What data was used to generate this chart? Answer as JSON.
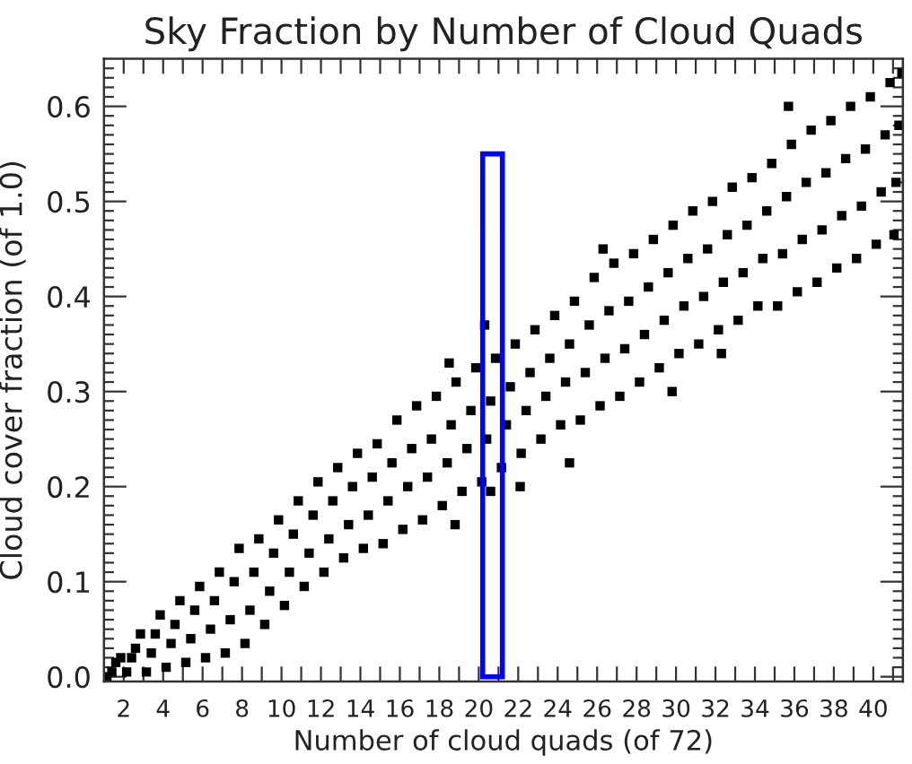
{
  "chart_data": {
    "type": "scatter",
    "title": "Sky Fraction by Number of Cloud Quads",
    "xlabel": "Number of cloud quads (of 72)",
    "ylabel": "Cloud cover fraction (of 1.0)",
    "xlim": [
      1,
      41.5
    ],
    "ylim": [
      -0.005,
      0.65
    ],
    "xticks": [
      2,
      {
        "value": 3,
        "label": null
      },
      4,
      {
        "value": 5,
        "label": null
      },
      6,
      {
        "value": 7,
        "label": null
      },
      8,
      {
        "value": 9,
        "label": null
      },
      10,
      {
        "value": 11,
        "label": null
      },
      12,
      {
        "value": 13,
        "label": null
      },
      14,
      {
        "value": 15,
        "label": null
      },
      16,
      {
        "value": 17,
        "label": null
      },
      18,
      {
        "value": 19,
        "label": null
      },
      20,
      {
        "value": 21,
        "label": null
      },
      22,
      {
        "value": 23,
        "label": null
      },
      24,
      {
        "value": 25,
        "label": null
      },
      26,
      {
        "value": 27,
        "label": null
      },
      28,
      {
        "value": 29,
        "label": null
      },
      30,
      {
        "value": 31,
        "label": null
      },
      32,
      {
        "value": 33,
        "label": null
      },
      34,
      {
        "value": 35,
        "label": null
      },
      36,
      {
        "value": 37,
        "label": null
      },
      38,
      {
        "value": 39,
        "label": null
      },
      40,
      {
        "value": 41,
        "label": null
      }
    ],
    "yticks": [
      {
        "value": 0,
        "label": "0.0"
      },
      {
        "value": 0.01,
        "label": null
      },
      {
        "value": 0.02,
        "label": null
      },
      {
        "value": 0.03,
        "label": null
      },
      {
        "value": 0.04,
        "label": null
      },
      {
        "value": 0.05,
        "label": null
      },
      {
        "value": 0.06,
        "label": null
      },
      {
        "value": 0.07,
        "label": null
      },
      {
        "value": 0.08,
        "label": null
      },
      {
        "value": 0.09,
        "label": null
      },
      0.1,
      {
        "value": 0.11,
        "label": null
      },
      {
        "value": 0.12,
        "label": null
      },
      {
        "value": 0.13,
        "label": null
      },
      {
        "value": 0.14,
        "label": null
      },
      {
        "value": 0.15,
        "label": null
      },
      {
        "value": 0.16,
        "label": null
      },
      {
        "value": 0.17,
        "label": null
      },
      {
        "value": 0.18,
        "label": null
      },
      {
        "value": 0.19,
        "label": null
      },
      0.2,
      {
        "value": 0.21,
        "label": null
      },
      {
        "value": 0.22,
        "label": null
      },
      {
        "value": 0.23,
        "label": null
      },
      {
        "value": 0.24,
        "label": null
      },
      {
        "value": 0.25,
        "label": null
      },
      {
        "value": 0.26,
        "label": null
      },
      {
        "value": 0.27,
        "label": null
      },
      {
        "value": 0.28,
        "label": null
      },
      {
        "value": 0.29,
        "label": null
      },
      0.3,
      {
        "value": 0.31,
        "label": null
      },
      {
        "value": 0.32,
        "label": null
      },
      {
        "value": 0.33,
        "label": null
      },
      {
        "value": 0.34,
        "label": null
      },
      {
        "value": 0.35,
        "label": null
      },
      {
        "value": 0.36,
        "label": null
      },
      {
        "value": 0.37,
        "label": null
      },
      {
        "value": 0.38,
        "label": null
      },
      {
        "value": 0.39,
        "label": null
      },
      0.4,
      {
        "value": 0.41,
        "label": null
      },
      {
        "value": 0.42,
        "label": null
      },
      {
        "value": 0.43,
        "label": null
      },
      {
        "value": 0.44,
        "label": null
      },
      {
        "value": 0.45,
        "label": null
      },
      {
        "value": 0.46,
        "label": null
      },
      {
        "value": 0.47,
        "label": null
      },
      {
        "value": 0.48,
        "label": null
      },
      {
        "value": 0.49,
        "label": null
      },
      0.5,
      {
        "value": 0.51,
        "label": null
      },
      {
        "value": 0.52,
        "label": null
      },
      {
        "value": 0.53,
        "label": null
      },
      {
        "value": 0.54,
        "label": null
      },
      {
        "value": 0.55,
        "label": null
      },
      {
        "value": 0.56,
        "label": null
      },
      {
        "value": 0.57,
        "label": null
      },
      {
        "value": 0.58,
        "label": null
      },
      {
        "value": 0.59,
        "label": null
      },
      0.6,
      {
        "value": 0.61,
        "label": null
      },
      {
        "value": 0.62,
        "label": null
      },
      {
        "value": 0.63,
        "label": null
      },
      {
        "value": 0.64,
        "label": null
      }
    ],
    "marker": "square",
    "grid": false,
    "series": [
      {
        "color": "#000000",
        "x": [
          1.15,
          1.4,
          1.6,
          1.85,
          2.15,
          2.4,
          2.6,
          2.85,
          3.15,
          3.4,
          3.6,
          3.85,
          4.15,
          4.4,
          4.6,
          4.85,
          5.15,
          5.4,
          5.6,
          5.85,
          6.15,
          6.4,
          6.6,
          6.85,
          7.15,
          7.4,
          7.6,
          7.85,
          8.15,
          8.4,
          8.6,
          8.85,
          9.15,
          9.4,
          9.6,
          9.85,
          10.15,
          10.4,
          10.6,
          10.85,
          11.15,
          11.4,
          11.6,
          11.85,
          12.15,
          12.4,
          12.6,
          12.85,
          13.15,
          13.4,
          13.6,
          13.85,
          14.15,
          14.4,
          14.6,
          14.85,
          15.15,
          15.4,
          15.6,
          15.85,
          16.15,
          16.4,
          16.6,
          16.85,
          17.15,
          17.4,
          17.6,
          17.85,
          18.15,
          18.4,
          18.6,
          18.85,
          19.15,
          19.4,
          19.6,
          19.85,
          20.15,
          20.4,
          20.6,
          20.85,
          21.15,
          21.4,
          21.6,
          21.85,
          22.15,
          22.4,
          22.6,
          22.85,
          23.15,
          23.4,
          23.6,
          23.85,
          24.15,
          24.4,
          24.6,
          24.85,
          25.15,
          25.4,
          25.6,
          25.85,
          26.15,
          26.4,
          26.6,
          26.85,
          27.15,
          27.4,
          27.6,
          27.85,
          28.15,
          28.4,
          28.6,
          28.85,
          29.15,
          29.4,
          29.6,
          29.85,
          30.15,
          30.4,
          30.6,
          30.85,
          31.15,
          31.4,
          31.6,
          31.85,
          32.15,
          32.4,
          32.6,
          32.85,
          33.15,
          33.4,
          33.6,
          33.85,
          34.15,
          34.4,
          34.6,
          34.85,
          35.15,
          35.4,
          35.6,
          35.85,
          36.15,
          36.4,
          36.6,
          36.85,
          37.15,
          37.4,
          37.6,
          37.85,
          38.15,
          38.4,
          38.6,
          38.85,
          39.15,
          39.4,
          39.6,
          39.85,
          40.15,
          40.4,
          40.6,
          40.85,
          41.05,
          41.15,
          41.3,
          41.45,
          18.5,
          18.8,
          20.3,
          20.6,
          22.1,
          24.6,
          26.3,
          29.8,
          32.3,
          35.7
        ],
        "values": [
          0.0,
          0.005,
          0.015,
          0.02,
          0.005,
          0.02,
          0.03,
          0.045,
          0.005,
          0.025,
          0.045,
          0.065,
          0.01,
          0.035,
          0.055,
          0.08,
          0.015,
          0.04,
          0.07,
          0.095,
          0.02,
          0.05,
          0.08,
          0.11,
          0.025,
          0.06,
          0.1,
          0.135,
          0.035,
          0.07,
          0.11,
          0.145,
          0.055,
          0.09,
          0.13,
          0.165,
          0.075,
          0.11,
          0.15,
          0.185,
          0.095,
          0.13,
          0.17,
          0.205,
          0.11,
          0.145,
          0.185,
          0.22,
          0.125,
          0.16,
          0.2,
          0.235,
          0.135,
          0.17,
          0.21,
          0.245,
          0.14,
          0.185,
          0.225,
          0.27,
          0.155,
          0.2,
          0.24,
          0.285,
          0.165,
          0.21,
          0.25,
          0.295,
          0.18,
          0.225,
          0.265,
          0.31,
          0.195,
          0.24,
          0.28,
          0.325,
          0.205,
          0.25,
          0.29,
          0.335,
          0.22,
          0.265,
          0.305,
          0.35,
          0.235,
          0.28,
          0.32,
          0.365,
          0.25,
          0.295,
          0.335,
          0.38,
          0.265,
          0.31,
          0.35,
          0.395,
          0.27,
          0.32,
          0.37,
          0.42,
          0.285,
          0.335,
          0.385,
          0.435,
          0.295,
          0.345,
          0.395,
          0.445,
          0.31,
          0.36,
          0.41,
          0.46,
          0.325,
          0.375,
          0.425,
          0.475,
          0.34,
          0.39,
          0.44,
          0.49,
          0.35,
          0.4,
          0.45,
          0.5,
          0.365,
          0.415,
          0.465,
          0.515,
          0.375,
          0.425,
          0.475,
          0.525,
          0.39,
          0.44,
          0.49,
          0.54,
          0.39,
          0.445,
          0.505,
          0.56,
          0.405,
          0.46,
          0.52,
          0.575,
          0.415,
          0.47,
          0.53,
          0.585,
          0.43,
          0.485,
          0.545,
          0.6,
          0.44,
          0.495,
          0.555,
          0.61,
          0.455,
          0.51,
          0.57,
          0.625,
          0.465,
          0.52,
          0.58,
          0.635,
          0.33,
          0.16,
          0.37,
          0.195,
          0.2,
          0.225,
          0.45,
          0.3,
          0.34,
          0.6
        ]
      },
      {
        "type": "bar",
        "color": "#0000ff",
        "x": [
          20.7
        ],
        "values": [
          0.55
        ]
      }
    ]
  }
}
